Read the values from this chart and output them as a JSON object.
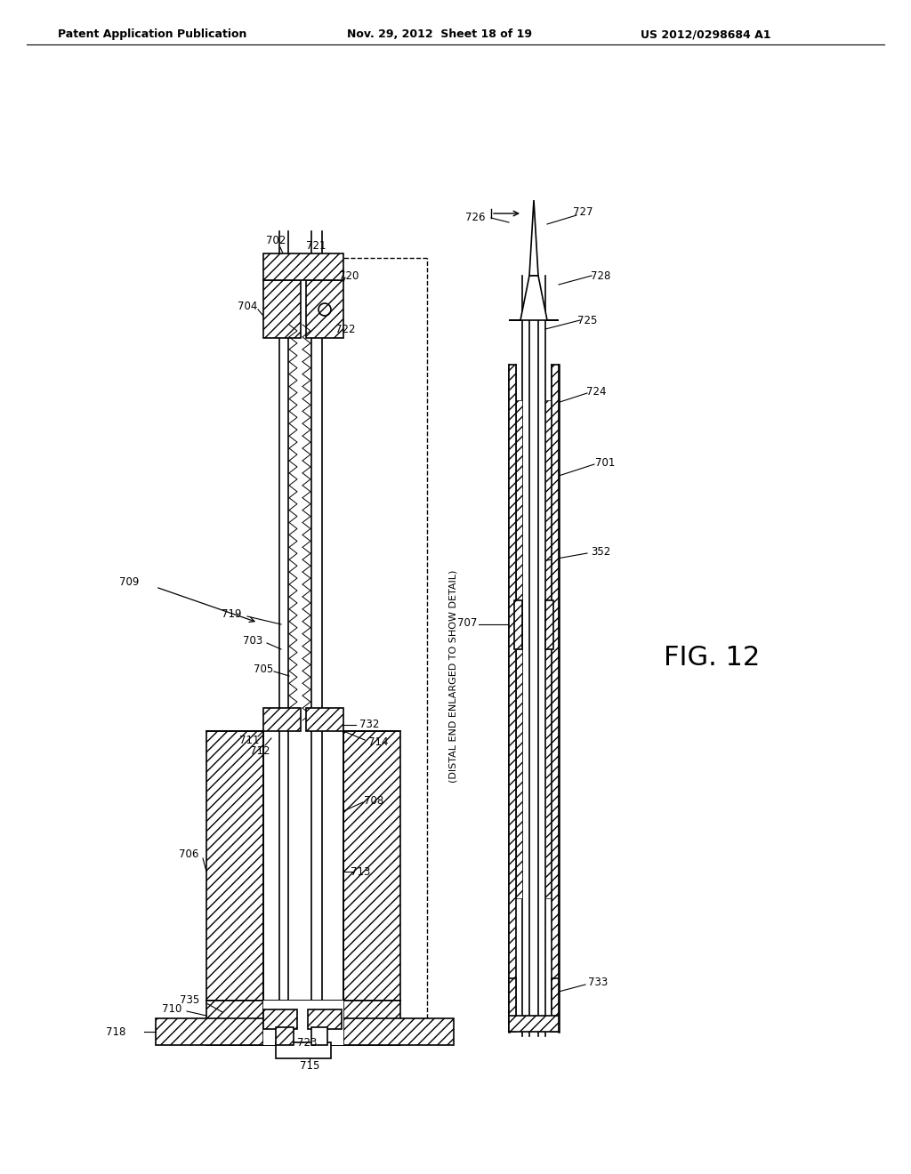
{
  "title_left": "Patent Application Publication",
  "title_center": "Nov. 29, 2012  Sheet 18 of 19",
  "title_right": "US 2012/0298684 A1",
  "fig_label": "FIG. 12",
  "bg_color": "#ffffff",
  "line_color": "#000000",
  "annotation_text": "(DISTAL END ENLARGED TO SHOW DETAIL)"
}
